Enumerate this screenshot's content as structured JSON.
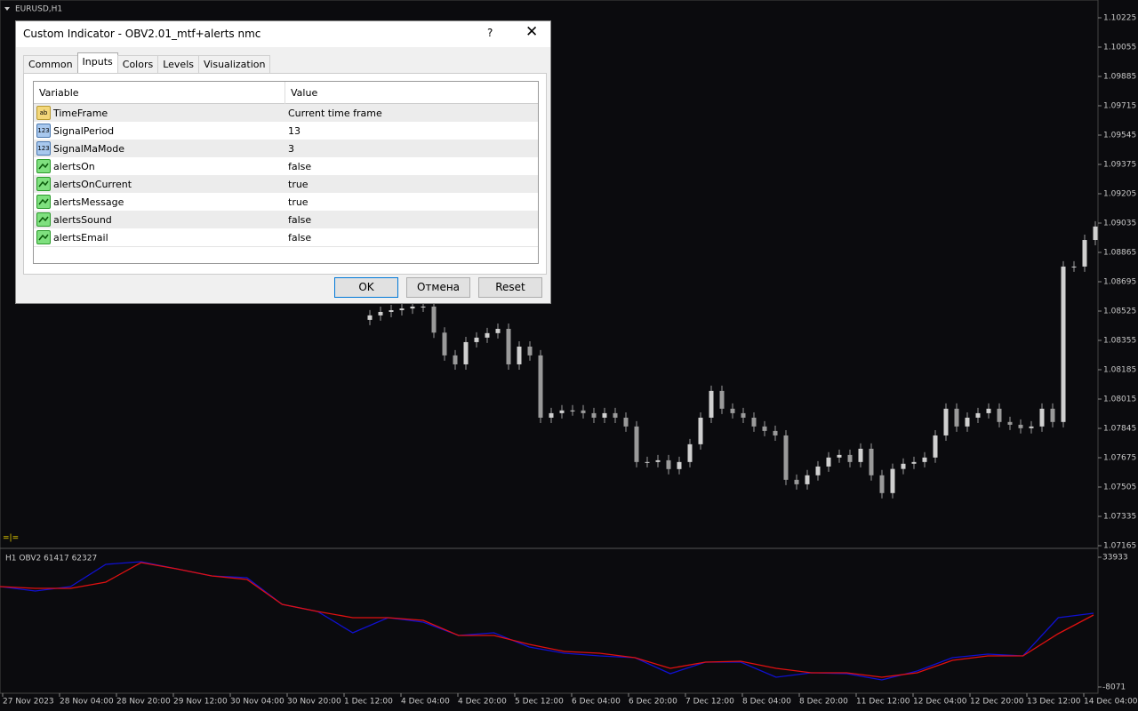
{
  "window": {
    "symbol": "EURUSD,H1",
    "marker": "=|="
  },
  "chart_data": {
    "type": "candlestick",
    "closes": [
      1.08474,
      1.085,
      1.0852,
      1.0853,
      1.0854,
      1.08551,
      1.08551,
      1.084,
      1.08268,
      1.08216,
      1.08345,
      1.08371,
      1.08397,
      1.08422,
      1.08216,
      1.08319,
      1.08268,
      1.07907,
      1.07933,
      1.07949,
      1.07949,
      1.07933,
      1.07907,
      1.07933,
      1.07907,
      1.07856,
      1.0765,
      1.0765,
      1.0766,
      1.07609,
      1.0765,
      1.07753,
      1.07907,
      1.08062,
      1.07959,
      1.07933,
      1.07907,
      1.07856,
      1.0783,
      1.07804,
      1.07547,
      1.07521,
      1.07573,
      1.07624,
      1.07676,
      1.07691,
      1.0765,
      1.07727,
      1.07573,
      1.0747,
      1.0761,
      1.0764,
      1.0765,
      1.07676,
      1.07804,
      1.07959,
      1.07856,
      1.07907,
      1.07933,
      1.07959,
      1.07882,
      1.07866,
      1.07846,
      1.07856,
      1.07959,
      1.07882,
      1.08783,
      1.08783,
      1.08937,
      1.09015
    ],
    "color": "#9a9a9a",
    "ylim": [
      1.07165,
      1.10225
    ],
    "yticks": [
      1.10225,
      1.10055,
      1.09885,
      1.09715,
      1.09545,
      1.09375,
      1.09205,
      1.09035,
      1.08865,
      1.08695,
      1.08525,
      1.08355,
      1.08185,
      1.08015,
      1.07845,
      1.07675,
      1.07505,
      1.07335,
      1.07165
    ],
    "categories": [
      "27 Nov 2023",
      "28 Nov 04:00",
      "28 Nov 20:00",
      "29 Nov 12:00",
      "30 Nov 04:00",
      "30 Nov 20:00",
      "1 Dec 12:00",
      "4 Dec 04:00",
      "4 Dec 20:00",
      "5 Dec 12:00",
      "6 Dec 04:00",
      "6 Dec 20:00",
      "7 Dec 12:00",
      "8 Dec 04:00",
      "8 Dec 20:00",
      "11 Dec 12:00",
      "12 Dec 04:00",
      "12 Dec 20:00",
      "13 Dec 12:00",
      "14 Dec 04:00"
    ]
  },
  "indicator": {
    "type": "line",
    "title": "H1 OBV2 61417 62327",
    "ylim": [
      -8071,
      33933
    ],
    "yticks": [
      33933,
      -8071
    ],
    "series": [
      {
        "color": "#1010d0",
        "values": [
          24439,
          23000,
          24439,
          31631,
          32494,
          30193,
          27891,
          27316,
          18685,
          16383,
          9478,
          14369,
          12931,
          8615,
          9478,
          4875,
          2861,
          1998,
          1423,
          -3756,
          -16,
          -16,
          -4907,
          -3468,
          -3756,
          -5770,
          -2893,
          1423,
          2574,
          1998,
          14369,
          15808
        ]
      },
      {
        "color": "#e01010",
        "values": [
          24439,
          23863,
          23863,
          25877,
          32207,
          30193,
          27891,
          26740,
          18685,
          16383,
          14369,
          14369,
          13506,
          8615,
          8615,
          5738,
          3437,
          2861,
          1423,
          -2030,
          -16,
          272,
          -2030,
          -3468,
          -3468,
          -4907,
          -3468,
          560,
          2003,
          1998,
          9191,
          15232
        ]
      }
    ]
  },
  "dialog": {
    "title": "Custom Indicator - OBV2.01_mtf+alerts nmc",
    "help": "?",
    "tabs": [
      "Common",
      "Inputs",
      "Colors",
      "Levels",
      "Visualization"
    ],
    "table": {
      "header": [
        "Variable",
        "Value"
      ],
      "icon_labels": {
        "string": "ab",
        "int": "123"
      },
      "rows": [
        {
          "kind": "string",
          "variable": "TimeFrame",
          "value": "Current time frame"
        },
        {
          "kind": "int",
          "variable": "SignalPeriod",
          "value": "13"
        },
        {
          "kind": "int",
          "variable": "SignalMaMode",
          "value": "3"
        },
        {
          "kind": "bool",
          "variable": "alertsOn",
          "value": "false"
        },
        {
          "kind": "bool",
          "variable": "alertsOnCurrent",
          "value": "true"
        },
        {
          "kind": "bool",
          "variable": "alertsMessage",
          "value": "true"
        },
        {
          "kind": "bool",
          "variable": "alertsSound",
          "value": "false"
        },
        {
          "kind": "bool",
          "variable": "alertsEmail",
          "value": "false"
        }
      ]
    },
    "buttons": [
      "OK",
      "Отмена",
      "Reset"
    ]
  }
}
